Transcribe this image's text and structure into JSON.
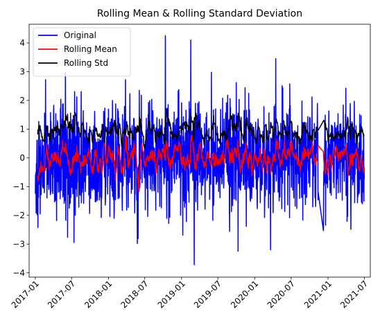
{
  "chart_data": {
    "type": "line",
    "title": "Rolling Mean & Rolling Standard Deviation",
    "xlabel": "",
    "ylabel": "",
    "x_range": [
      "2016-12-01",
      "2021-07-31"
    ],
    "ylim": [
      -4.15,
      4.65
    ],
    "y_ticks": [
      -4,
      -3,
      -2,
      -1,
      0,
      1,
      2,
      3,
      4
    ],
    "x_ticks": [
      "2017-01",
      "2017-07",
      "2018-01",
      "2018-07",
      "2019-01",
      "2019-07",
      "2020-01",
      "2020-07",
      "2021-01",
      "2021-07"
    ],
    "grid": false,
    "legend_position": "top-left",
    "date_start": "2017-01-01",
    "date_end": "2021-07-01",
    "gap": {
      "from": "2020-11-13",
      "to": "2020-12-09"
    },
    "series": [
      {
        "name": "Original",
        "color": "#0000ff",
        "approx_range": [
          -3.7,
          4.25
        ],
        "features": [
          {
            "x": "2018-10-12",
            "y": 4.25
          },
          {
            "x": "2019-02-16",
            "y": 4.1
          },
          {
            "x": "2020-04-15",
            "y": 3.45
          },
          {
            "x": "2019-03-05",
            "y": -3.72
          },
          {
            "x": "2019-10-10",
            "y": -3.25
          },
          {
            "x": "2020-03-20",
            "y": -3.2
          },
          {
            "x": "2018-05-25",
            "y": -2.98
          }
        ]
      },
      {
        "name": "Rolling Mean",
        "color": "#ff0000",
        "approx_range": [
          -0.3,
          0.4
        ]
      },
      {
        "name": "Rolling Std",
        "color": "#000000",
        "approx_range": [
          0.5,
          1.6
        ]
      }
    ]
  }
}
